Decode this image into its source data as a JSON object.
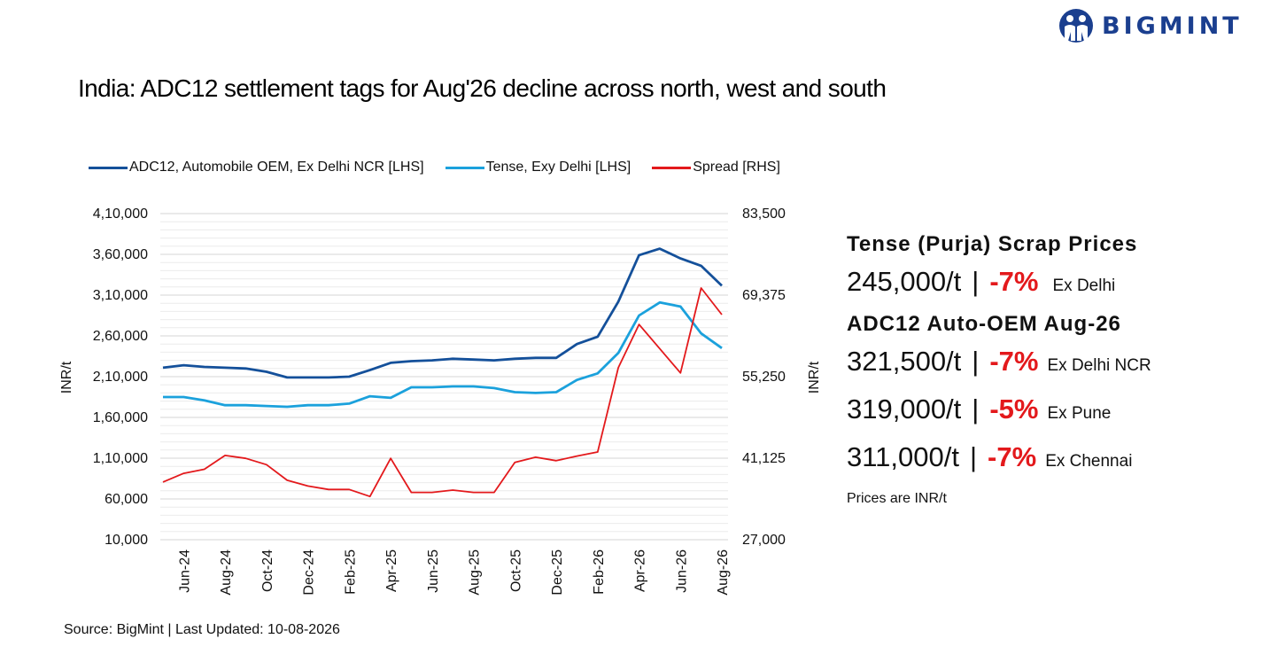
{
  "brand": {
    "name": "BIGMINT",
    "color": "#1b3f8f"
  },
  "title": "India: ADC12 settlement tags for Aug'26 decline across north, west and south",
  "source": "Source: BigMint | Last Updated: 10-08-2026",
  "legend": [
    {
      "label": "ADC12, Automobile OEM, Ex Delhi NCR [LHS]",
      "color": "#14509a"
    },
    {
      "label": "Tense, Exy Delhi [LHS]",
      "color": "#1ba1dc"
    },
    {
      "label": "Spread [RHS]",
      "color": "#e3191c"
    }
  ],
  "chart_data": {
    "type": "line",
    "x_tick_labels": [
      "Jun-24",
      "Aug-24",
      "Oct-24",
      "Dec-24",
      "Feb-25",
      "Apr-25",
      "Jun-25",
      "Aug-25",
      "Oct-25",
      "Dec-25",
      "Feb-26",
      "Apr-26",
      "Jun-26",
      "Aug-26"
    ],
    "x": [
      "May-24",
      "Jun-24",
      "Jul-24",
      "Aug-24",
      "Sep-24",
      "Oct-24",
      "Nov-24",
      "Dec-24",
      "Jan-25",
      "Feb-25",
      "Mar-25",
      "Apr-25",
      "May-25",
      "Jun-25",
      "Jul-25",
      "Aug-25",
      "Sep-25",
      "Oct-25",
      "Nov-25",
      "Dec-25",
      "Jan-26",
      "Feb-26",
      "Mar-26",
      "Apr-26",
      "May-26",
      "Jun-26",
      "Jul-26",
      "Aug-26"
    ],
    "y_left": {
      "label": "INR/t",
      "ticks": [
        "4,10,000",
        "3,60,000",
        "3,10,000",
        "2,60,000",
        "2,10,000",
        "1,60,000",
        "1,10,000",
        "60,000",
        "10,000"
      ],
      "range": [
        10000,
        410000
      ]
    },
    "y_right": {
      "label": "INR/t",
      "ticks": [
        "83,500",
        "69,375",
        "55,250",
        "41,125",
        "27,000"
      ],
      "range": [
        27000,
        83500
      ],
      "labeled_range": [
        27000,
        83500
      ]
    },
    "series": [
      {
        "name": "ADC12, Automobile OEM, Ex Delhi NCR [LHS]",
        "axis": "left",
        "color": "#14509a",
        "values": [
          221000,
          224000,
          222000,
          221000,
          220000,
          216000,
          209000,
          209000,
          209000,
          210000,
          218000,
          227000,
          229000,
          230000,
          232000,
          231000,
          230000,
          232000,
          233000,
          233000,
          250000,
          259000,
          302000,
          359000,
          367000,
          355000,
          346000,
          321500
        ]
      },
      {
        "name": "Tense, Exy Delhi [LHS]",
        "axis": "left",
        "color": "#1ba1dc",
        "values": [
          185000,
          185000,
          181000,
          175000,
          175000,
          174000,
          173000,
          175000,
          175000,
          177000,
          186000,
          184000,
          197000,
          197000,
          198000,
          198000,
          196000,
          191000,
          190000,
          191000,
          206000,
          214000,
          239000,
          285000,
          301000,
          296000,
          263000,
          245000
        ]
      },
      {
        "name": "Spread [RHS]",
        "axis": "right",
        "color": "#e3191c",
        "values": [
          37000,
          38500,
          39200,
          41600,
          41100,
          40000,
          37300,
          36300,
          35700,
          35700,
          34500,
          41100,
          35200,
          35200,
          35600,
          35200,
          35200,
          40400,
          41300,
          40700,
          41500,
          42200,
          56800,
          64300,
          60100,
          55900,
          70600,
          66000
        ]
      }
    ],
    "grid": true
  },
  "side_panel": {
    "tense_heading": "Tense (Purja) Scrap Prices",
    "tense_price": {
      "value": "245,000/t",
      "sep": "|",
      "change": "-7%",
      "location": "Ex Delhi"
    },
    "adc_heading": "ADC12 Auto-OEM Aug-26",
    "adc_prices": [
      {
        "value": "321,500/t",
        "sep": "|",
        "change": "-7%",
        "location": "Ex Delhi NCR"
      },
      {
        "value": "319,000/t",
        "sep": "|",
        "change": "-5%",
        "location": "Ex Pune"
      },
      {
        "value": "311,000/t",
        "sep": "|",
        "change": "-7%",
        "location": "Ex Chennai"
      }
    ],
    "note": "Prices are INR/t"
  }
}
